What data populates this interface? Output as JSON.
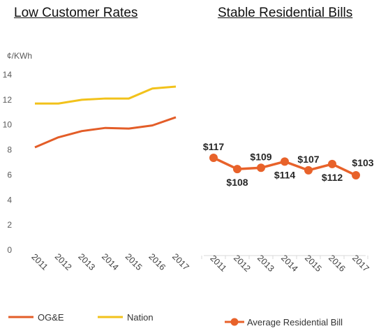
{
  "colors": {
    "oge": "#e35d28",
    "nation": "#f2c21b",
    "bill": "#e8622a"
  },
  "chart_data": [
    {
      "type": "line",
      "title": "Low Customer Rates",
      "ylabel": "¢/KWh",
      "xlabel": "",
      "ylim": [
        0,
        14
      ],
      "yticks": [
        0,
        2,
        4,
        6,
        8,
        10,
        12,
        14
      ],
      "categories": [
        "2011",
        "2012",
        "2013",
        "2014",
        "2015",
        "2016",
        "2017"
      ],
      "grid": false,
      "legend_position": "bottom",
      "series": [
        {
          "name": "OG&E",
          "values": [
            8.2,
            9.0,
            9.5,
            9.75,
            9.7,
            9.95,
            10.6
          ]
        },
        {
          "name": "Nation",
          "values": [
            11.7,
            11.7,
            12.0,
            12.1,
            12.1,
            12.9,
            13.05
          ]
        }
      ]
    },
    {
      "type": "line",
      "title": "Stable Residential Bills",
      "xlabel": "",
      "ylabel": "",
      "categories": [
        "2011",
        "2012",
        "2013",
        "2014",
        "2015",
        "2016",
        "2017"
      ],
      "grid": false,
      "legend_position": "bottom",
      "series": [
        {
          "name": "Average Residential Bill",
          "values": [
            117,
            108,
            109,
            114,
            107,
            112,
            103
          ],
          "labels": [
            "$117",
            "$108",
            "$109",
            "$114",
            "$107",
            "$112",
            "$103"
          ]
        }
      ]
    }
  ]
}
